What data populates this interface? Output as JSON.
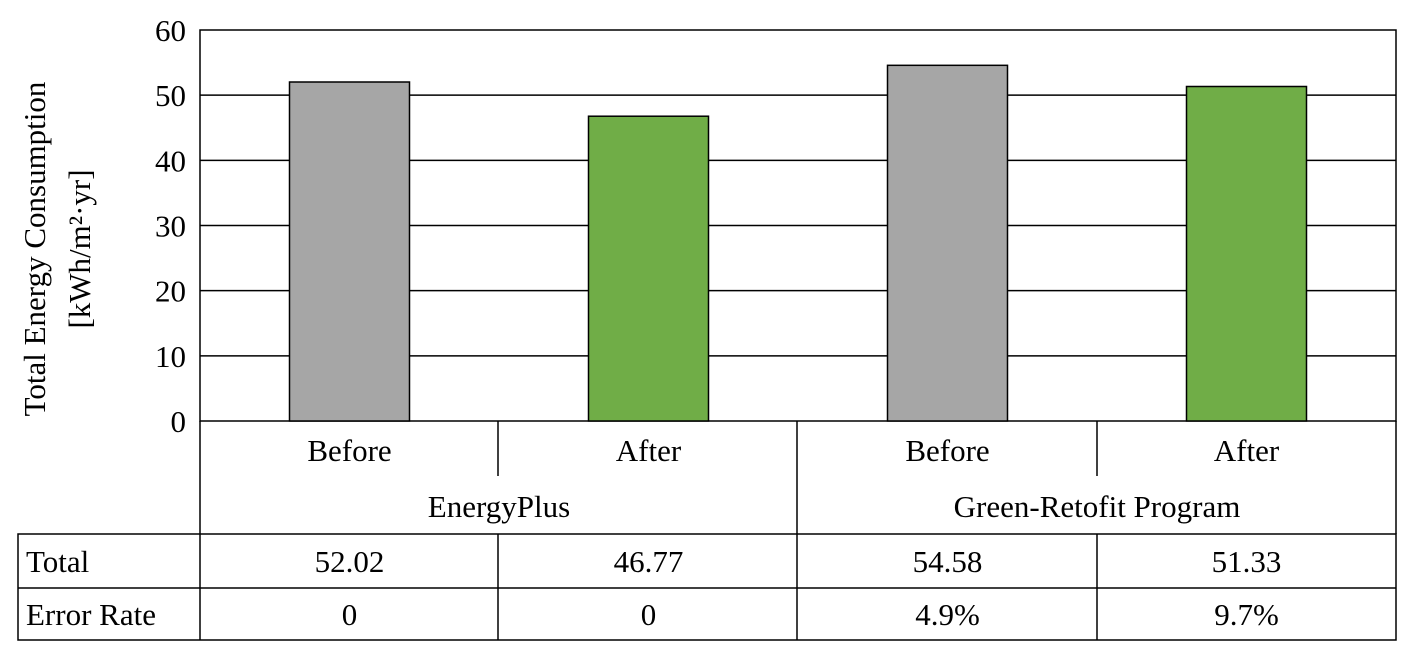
{
  "chart_data": {
    "type": "bar",
    "ylabel_line1": "Total Energy Consumption",
    "ylabel_line2": "[kWh/m²·yr]",
    "ylim": [
      0,
      60
    ],
    "yticks": [
      "0",
      "10",
      "20",
      "30",
      "40",
      "50",
      "60"
    ],
    "categories": [
      "Before",
      "After",
      "Before",
      "After"
    ],
    "groups": [
      "EnergyPlus",
      "Green-Retofit Program"
    ],
    "values": [
      52.02,
      46.77,
      54.58,
      51.33
    ],
    "bar_colors": [
      "#a6a6a6",
      "#70ad47",
      "#a6a6a6",
      "#70ad47"
    ],
    "grid": true,
    "table": {
      "rows": [
        {
          "label": "Total",
          "cells": [
            "52.02",
            "46.77",
            "54.58",
            "51.33"
          ]
        },
        {
          "label": "Error Rate",
          "cells": [
            "0",
            "0",
            "4.9%",
            "9.7%"
          ]
        }
      ]
    }
  }
}
